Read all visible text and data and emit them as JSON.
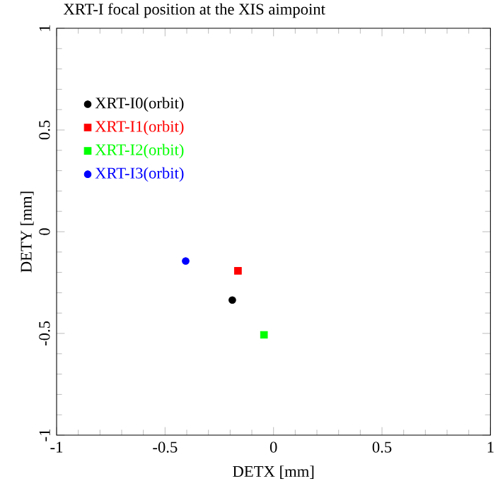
{
  "chart_data": {
    "type": "scatter",
    "title": "XRT-I focal position at the XIS aimpoint",
    "xlabel": "DETX [mm]",
    "ylabel": "DETY [mm]",
    "xlim": [
      -1,
      1
    ],
    "ylim": [
      -1,
      1
    ],
    "xticks": [
      -1,
      -0.5,
      0,
      0.5,
      1
    ],
    "yticks": [
      -1,
      -0.5,
      0,
      0.5,
      1
    ],
    "legend": "top left",
    "grid": false,
    "series": [
      {
        "name": "XRT-I0(orbit)",
        "color": "#000000",
        "marker": "circle",
        "x": [
          -0.19
        ],
        "values": [
          -0.336
        ]
      },
      {
        "name": "XRT-I1(orbit)",
        "color": "#ff0000",
        "marker": "square",
        "x": [
          -0.164
        ],
        "values": [
          -0.192
        ]
      },
      {
        "name": "XRT-I2(orbit)",
        "color": "#00ff00",
        "marker": "square",
        "x": [
          -0.044
        ],
        "values": [
          -0.507
        ]
      },
      {
        "name": "XRT-I3(orbit)",
        "color": "#0000ff",
        "marker": "circle",
        "x": [
          -0.405
        ],
        "values": [
          -0.144
        ]
      }
    ]
  }
}
